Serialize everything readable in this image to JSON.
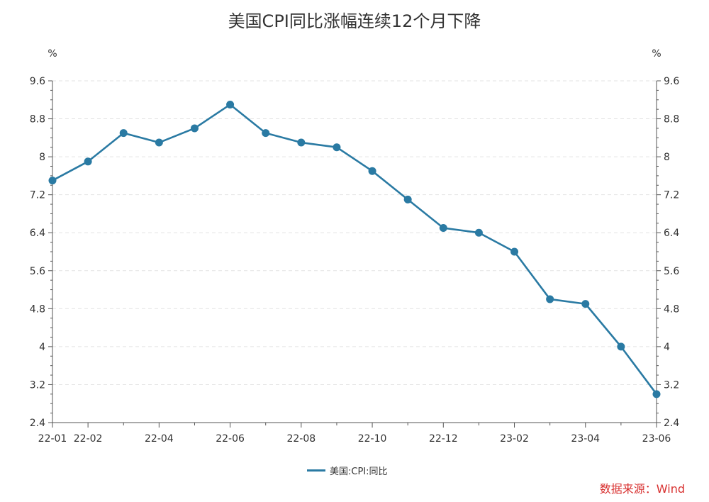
{
  "chart_data": {
    "type": "line",
    "title": "美国CPI同比涨幅连续12个月下降",
    "xlabel": "",
    "ylabel": "%",
    "y2label": "%",
    "ylim": [
      2.4,
      9.6
    ],
    "yticks": [
      "2.4",
      "3.2",
      "4",
      "4.8",
      "5.6",
      "6.4",
      "7.2",
      "8",
      "8.8",
      "9.6"
    ],
    "x": [
      "22-01",
      "22-02",
      "22-03",
      "22-04",
      "22-05",
      "22-06",
      "22-07",
      "22-08",
      "22-09",
      "22-10",
      "22-11",
      "22-12",
      "23-01",
      "23-02",
      "23-03",
      "23-04",
      "23-05",
      "23-06"
    ],
    "xtick_labels": [
      "22-01",
      "22-02",
      "22-04",
      "22-06",
      "22-08",
      "22-10",
      "22-12",
      "23-02",
      "23-04",
      "23-06"
    ],
    "grid": "horizontal-dashed",
    "legend_position": "bottom-center",
    "series": [
      {
        "name": "美国:CPI:同比",
        "color": "#2a7aa3",
        "values": [
          7.5,
          7.9,
          8.5,
          8.3,
          8.6,
          9.1,
          8.5,
          8.3,
          8.2,
          7.7,
          7.1,
          6.5,
          6.4,
          6.0,
          5.0,
          4.9,
          4.0,
          3.0
        ]
      }
    ],
    "source_note": "数据来源：Wind"
  }
}
